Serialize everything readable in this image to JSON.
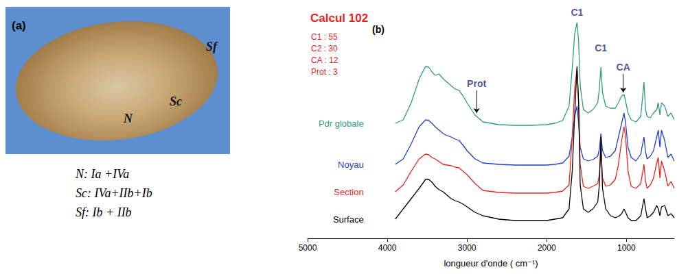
{
  "panel_a": {
    "label": "(a)",
    "markers": [
      "N",
      "Sc",
      "Sf"
    ],
    "caption": [
      "N: Ia +IVa",
      "Sc: IVa+IIb+Ib",
      "Sf: Ib + IIb"
    ]
  },
  "chart_data": {
    "type": "line",
    "panel_label": "(b)",
    "title": "Calcul 102",
    "composition": [
      "C1 : 55",
      "C2 : 30",
      "CA : 12",
      "Prot : 3"
    ],
    "x_label": "longueur d'onde ( cm⁻¹)",
    "x": [
      3900,
      3800,
      3700,
      3600,
      3520,
      3480,
      3440,
      3400,
      3350,
      3300,
      3250,
      3200,
      3150,
      3100,
      3050,
      3000,
      2900,
      2800,
      2600,
      2400,
      2200,
      2000,
      1900,
      1800,
      1720,
      1680,
      1650,
      1620,
      1600,
      1580,
      1540,
      1480,
      1420,
      1360,
      1340,
      1320,
      1300,
      1260,
      1200,
      1140,
      1100,
      1060,
      1030,
      1010,
      980,
      940,
      880,
      820,
      780,
      760,
      740,
      700,
      660,
      620,
      600,
      580,
      560,
      520,
      480,
      440,
      400
    ],
    "xlim": [
      5000,
      400
    ],
    "xticks": [
      5000,
      4000,
      3000,
      2000,
      1000
    ],
    "ylim": [
      0,
      340
    ],
    "yticks": [],
    "tick_labels": "x",
    "grid": false,
    "series": [
      {
        "name": "Pdr globale",
        "color": "#2f9a7f",
        "values": [
          168,
          173,
          198,
          233,
          251,
          250,
          243,
          238,
          240,
          233,
          228,
          223,
          218,
          216,
          208,
          198,
          180,
          170,
          166,
          165,
          165,
          166,
          168,
          172,
          193,
          248,
          298,
          315,
          288,
          223,
          188,
          183,
          188,
          198,
          218,
          250,
          213,
          193,
          190,
          190,
          198,
          208,
          210,
          200,
          183,
          173,
          170,
          178,
          228,
          188,
          178,
          176,
          183,
          188,
          198,
          180,
          198,
          193,
          178,
          183,
          173
        ]
      },
      {
        "name": "Noyau",
        "color": "#1f3fd0",
        "values": [
          108,
          116,
          138,
          163,
          173,
          172,
          168,
          163,
          158,
          153,
          150,
          148,
          145,
          143,
          136,
          128,
          116,
          110,
          108,
          107,
          107,
          107,
          108,
          110,
          120,
          148,
          178,
          193,
          168,
          133,
          116,
          113,
          115,
          120,
          130,
          153,
          128,
          118,
          120,
          128,
          148,
          168,
          183,
          168,
          133,
          118,
          113,
          123,
          148,
          126,
          116,
          120,
          128,
          148,
          158,
          133,
          158,
          143,
          118,
          123,
          113
        ]
      },
      {
        "name": "Section",
        "color": "#e8231f",
        "values": [
          68,
          78,
          98,
          116,
          123,
          122,
          118,
          116,
          112,
          108,
          107,
          106,
          104,
          103,
          98,
          93,
          80,
          70,
          67,
          66,
          66,
          66,
          67,
          69,
          78,
          148,
          218,
          248,
          198,
          108,
          76,
          73,
          76,
          80,
          93,
          128,
          88,
          76,
          78,
          86,
          108,
          143,
          163,
          148,
          98,
          76,
          73,
          80,
          108,
          83,
          73,
          78,
          88,
          110,
          118,
          88,
          113,
          98,
          76,
          83,
          73
        ]
      },
      {
        "name": "Surface",
        "color": "#000000",
        "values": [
          28,
          43,
          58,
          73,
          86,
          86,
          82,
          76,
          71,
          68,
          63,
          58,
          55,
          53,
          50,
          46,
          38,
          33,
          28,
          26,
          26,
          26,
          28,
          30,
          43,
          98,
          178,
          251,
          198,
          78,
          43,
          38,
          43,
          53,
          78,
          148,
          73,
          43,
          33,
          30,
          32,
          36,
          43,
          38,
          30,
          26,
          26,
          33,
          58,
          43,
          30,
          33,
          38,
          48,
          43,
          33,
          46,
          48,
          33,
          36,
          30
        ]
      }
    ],
    "annotations": [
      {
        "text": "C1",
        "x": 1620,
        "y": 330
      },
      {
        "text": "C1",
        "x": 1320,
        "y": 278
      },
      {
        "text": "CA",
        "x": 1040,
        "y": 250,
        "marker": "arrow"
      },
      {
        "text": "Prot",
        "x": 2880,
        "y": 226,
        "marker": "arrow"
      }
    ]
  }
}
